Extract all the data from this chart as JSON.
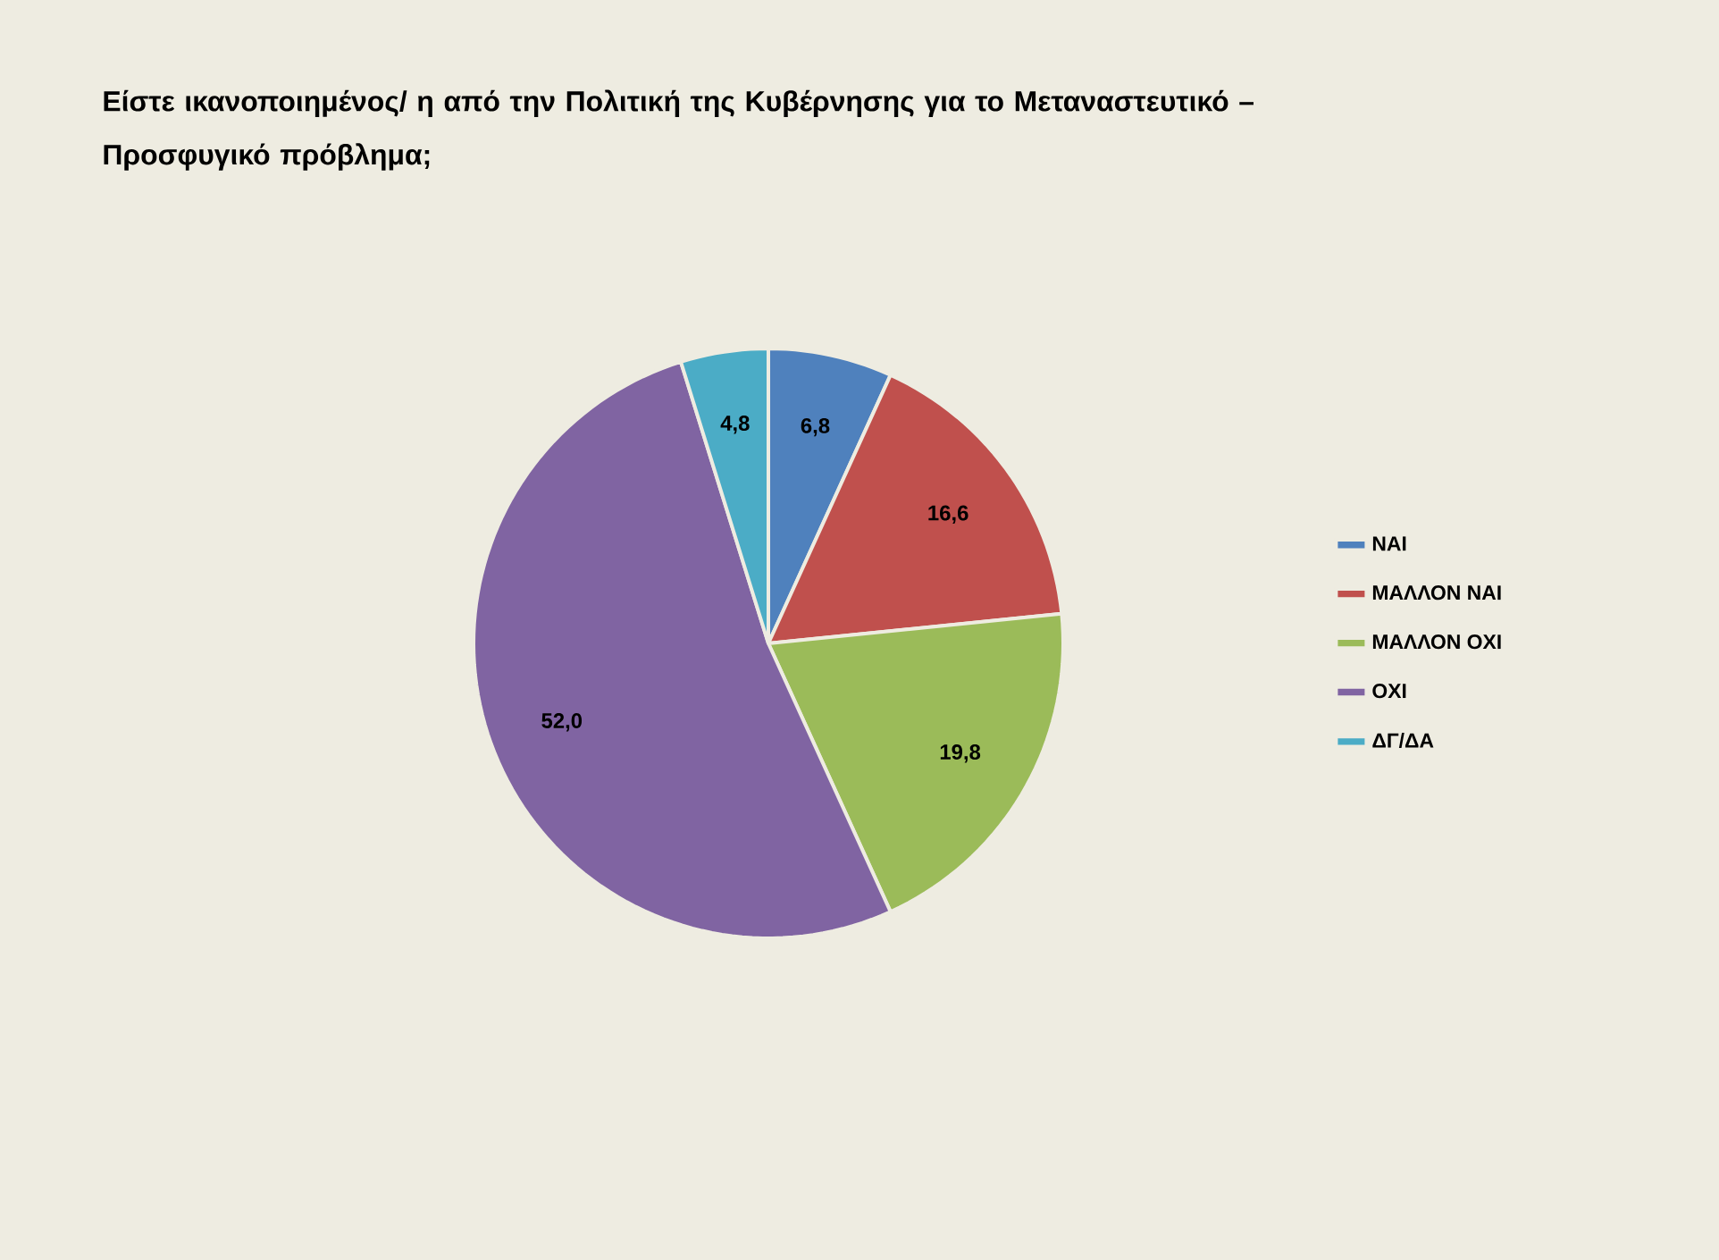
{
  "chart_data": {
    "type": "pie",
    "title": "Είστε ικανοποιημένος/ η από την Πολιτική της Κυβέρνησης για το Μεταναστευτικό – Προσφυγικό πρόβλημα;",
    "categories": [
      "ΝΑΙ",
      "ΜΑΛΛΟΝ ΝΑΙ",
      "ΜΑΛΛΟΝ ΟΧΙ",
      "ΟΧΙ",
      "ΔΓ/ΔΑ"
    ],
    "values": [
      6.8,
      16.6,
      19.8,
      52.0,
      4.8
    ],
    "colors": [
      "#4f81bd",
      "#c0504d",
      "#9bbb59",
      "#8064a2",
      "#4bacc6"
    ],
    "value_labels": [
      "6,8",
      "16,6",
      "19,8",
      "52,0",
      "4,8"
    ],
    "legend": "right"
  }
}
